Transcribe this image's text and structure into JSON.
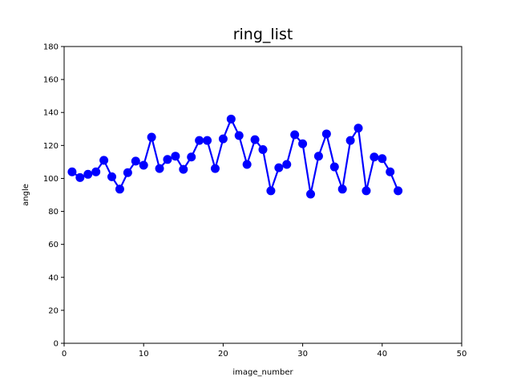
{
  "chart_data": {
    "type": "line",
    "title": "ring_list",
    "xlabel": "image_number",
    "ylabel": "angle",
    "xlim": [
      0,
      50
    ],
    "ylim": [
      0,
      180
    ],
    "xticks": [
      0,
      10,
      20,
      30,
      40,
      50
    ],
    "yticks": [
      0,
      20,
      40,
      60,
      80,
      100,
      120,
      140,
      160,
      180
    ],
    "grid": false,
    "series": [
      {
        "color": "#0000ff",
        "marker": "circle",
        "x": [
          1,
          2,
          3,
          4,
          5,
          6,
          7,
          8,
          9,
          10,
          11,
          12,
          13,
          14,
          15,
          16,
          17,
          18,
          19,
          20,
          21,
          22,
          23,
          24,
          25,
          26,
          27,
          28,
          29,
          30,
          31,
          32,
          33,
          34,
          35,
          36,
          37,
          38,
          39,
          40,
          41,
          42
        ],
        "y": [
          104,
          100.5,
          102.5,
          104,
          111,
          101,
          93.5,
          103.5,
          110.5,
          108,
          125,
          106,
          111.5,
          113.5,
          105.5,
          113,
          123,
          123,
          106,
          124,
          136,
          126,
          108.5,
          123.5,
          117.5,
          92.5,
          106.5,
          108.5,
          126.5,
          121,
          90.5,
          113.5,
          127,
          107,
          93.5,
          123,
          130.5,
          92.5,
          113,
          112,
          104,
          92.5
        ]
      }
    ]
  }
}
